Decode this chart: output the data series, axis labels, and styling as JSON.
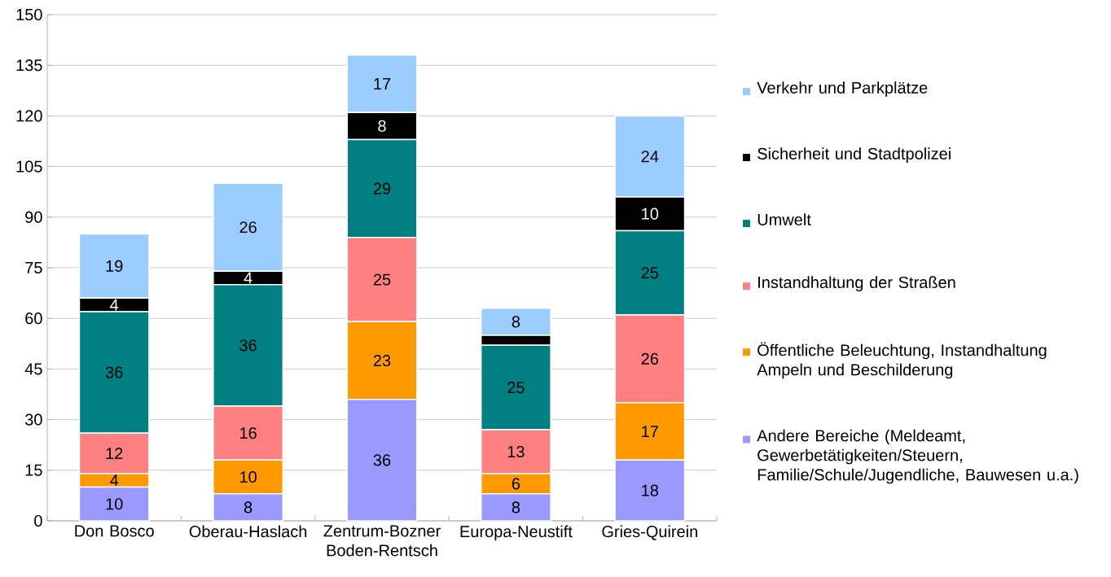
{
  "chart_data": {
    "type": "bar",
    "stacked": true,
    "categories": [
      "Don Bosco",
      "Oberau-Haslach",
      "Zentrum-Bozner Boden-Rentsch",
      "Europa-Neustift",
      "Gries-Quirein"
    ],
    "series": [
      {
        "name": "Andere Bereiche (Meldeamt, Gewerbetätigkeiten/Steuern, Familie/Schule/Jugendliche, Bauwesen u.a.)",
        "color": "#9999ff",
        "values": [
          10,
          8,
          36,
          8,
          18
        ],
        "value_labels": [
          "10",
          "8",
          "36",
          "8",
          "18"
        ]
      },
      {
        "name": "Öffentliche Beleuchtung, Instandhaltung Ampeln und Beschilderung",
        "color": "#ff9900",
        "values": [
          4,
          10,
          23,
          6,
          17
        ],
        "value_labels": [
          "4",
          "10",
          "23",
          "6",
          "17"
        ]
      },
      {
        "name": "Instandhaltung der Straßen",
        "color": "#ff8080",
        "values": [
          12,
          16,
          25,
          13,
          26
        ],
        "value_labels": [
          "12",
          "16",
          "25",
          "13",
          "26"
        ]
      },
      {
        "name": "Umwelt",
        "color": "#008080",
        "values": [
          36,
          36,
          29,
          25,
          25
        ],
        "value_labels": [
          "36",
          "36",
          "29",
          "25",
          "25"
        ]
      },
      {
        "name": "Sicherheit und Stadtpolizei",
        "color": "#000000",
        "values": [
          4,
          4,
          8,
          3,
          10
        ],
        "value_labels": [
          "4",
          "4",
          "8",
          null,
          "10"
        ]
      },
      {
        "name": "Verkehr und Parkplätze",
        "color": "#99ccff",
        "values": [
          19,
          26,
          17,
          8,
          24
        ],
        "value_labels": [
          "19",
          "26",
          "17",
          "8",
          "24"
        ]
      }
    ],
    "ylim": [
      0,
      150
    ],
    "yticks": [
      0,
      15,
      30,
      45,
      60,
      75,
      90,
      105,
      120,
      135,
      150
    ],
    "grid": "y",
    "legend": "right"
  }
}
